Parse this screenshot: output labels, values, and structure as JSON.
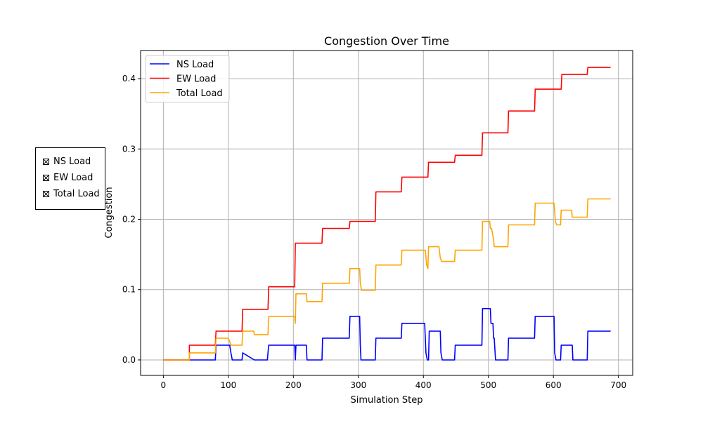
{
  "chart_data": {
    "type": "line",
    "title": "Congestion Over Time",
    "xlabel": "Simulation Step",
    "ylabel": "Congestion",
    "xlim": [
      -35,
      722
    ],
    "ylim": [
      -0.022,
      0.44
    ],
    "xticks": [
      0,
      100,
      200,
      300,
      400,
      500,
      600,
      700
    ],
    "yticks": [
      0.0,
      0.1,
      0.2,
      0.3,
      0.4
    ],
    "ytick_labels": [
      "0.0",
      "0.1",
      "0.2",
      "0.3",
      "0.4"
    ],
    "grid": true,
    "legend_position": "upper-left",
    "series": [
      {
        "name": "NS Load",
        "color": "#0000ff",
        "points": [
          [
            0,
            0
          ],
          [
            40,
            0
          ],
          [
            40,
            0
          ],
          [
            80,
            0
          ],
          [
            81,
            0.021
          ],
          [
            102,
            0.021
          ],
          [
            104,
            0.01
          ],
          [
            106,
            0
          ],
          [
            121,
            0
          ],
          [
            122,
            0.01
          ],
          [
            140,
            0
          ],
          [
            160,
            0
          ],
          [
            162,
            0.021
          ],
          [
            202,
            0.021
          ],
          [
            203,
            0
          ],
          [
            204,
            0.021
          ],
          [
            220,
            0.021
          ],
          [
            221,
            0
          ],
          [
            244,
            0
          ],
          [
            245,
            0.031
          ],
          [
            286,
            0.031
          ],
          [
            287,
            0.062
          ],
          [
            302,
            0.062
          ],
          [
            303,
            0.021
          ],
          [
            304,
            0
          ],
          [
            326,
            0
          ],
          [
            327,
            0.031
          ],
          [
            366,
            0.031
          ],
          [
            367,
            0.052
          ],
          [
            402,
            0.052
          ],
          [
            404,
            0.01
          ],
          [
            406,
            0
          ],
          [
            408,
            0
          ],
          [
            409,
            0.041
          ],
          [
            426,
            0.041
          ],
          [
            427,
            0.01
          ],
          [
            429,
            0
          ],
          [
            448,
            0
          ],
          [
            449,
            0.021
          ],
          [
            490,
            0.021
          ],
          [
            491,
            0.073
          ],
          [
            503,
            0.073
          ],
          [
            504,
            0.052
          ],
          [
            507,
            0.052
          ],
          [
            508,
            0.031
          ],
          [
            509,
            0.031
          ],
          [
            511,
            0
          ],
          [
            530,
            0
          ],
          [
            531,
            0.031
          ],
          [
            571,
            0.031
          ],
          [
            572,
            0.062
          ],
          [
            601,
            0.062
          ],
          [
            602,
            0.01
          ],
          [
            604,
            0
          ],
          [
            611,
            0
          ],
          [
            612,
            0.021
          ],
          [
            629,
            0.021
          ],
          [
            630,
            0
          ],
          [
            652,
            0
          ],
          [
            653,
            0.041
          ],
          [
            688,
            0.041
          ]
        ]
      },
      {
        "name": "EW Load",
        "color": "#ff0000",
        "points": [
          [
            0,
            0
          ],
          [
            40,
            0
          ],
          [
            40,
            0.021
          ],
          [
            80,
            0.021
          ],
          [
            81,
            0.041
          ],
          [
            121,
            0.041
          ],
          [
            122,
            0.072
          ],
          [
            161,
            0.072
          ],
          [
            162,
            0.104
          ],
          [
            202,
            0.104
          ],
          [
            203,
            0.166
          ],
          [
            244,
            0.166
          ],
          [
            245,
            0.187
          ],
          [
            286,
            0.187
          ],
          [
            287,
            0.197
          ],
          [
            326,
            0.197
          ],
          [
            327,
            0.239
          ],
          [
            366,
            0.239
          ],
          [
            367,
            0.26
          ],
          [
            407,
            0.26
          ],
          [
            408,
            0.281
          ],
          [
            448,
            0.281
          ],
          [
            449,
            0.291
          ],
          [
            490,
            0.291
          ],
          [
            491,
            0.323
          ],
          [
            530,
            0.323
          ],
          [
            531,
            0.354
          ],
          [
            571,
            0.354
          ],
          [
            572,
            0.385
          ],
          [
            612,
            0.385
          ],
          [
            613,
            0.406
          ],
          [
            652,
            0.406
          ],
          [
            653,
            0.416
          ],
          [
            688,
            0.416
          ]
        ]
      },
      {
        "name": "Total Load",
        "color": "#ffa500",
        "points": [
          [
            0,
            0
          ],
          [
            40,
            0
          ],
          [
            40,
            0.01
          ],
          [
            80,
            0.01
          ],
          [
            81,
            0.031
          ],
          [
            100,
            0.031
          ],
          [
            102,
            0.026
          ],
          [
            104,
            0.021
          ],
          [
            121,
            0.021
          ],
          [
            122,
            0.041
          ],
          [
            139,
            0.041
          ],
          [
            140,
            0.036
          ],
          [
            161,
            0.036
          ],
          [
            162,
            0.062
          ],
          [
            202,
            0.062
          ],
          [
            203,
            0.052
          ],
          [
            204,
            0.094
          ],
          [
            220,
            0.094
          ],
          [
            221,
            0.083
          ],
          [
            244,
            0.083
          ],
          [
            245,
            0.109
          ],
          [
            286,
            0.109
          ],
          [
            287,
            0.13
          ],
          [
            302,
            0.13
          ],
          [
            303,
            0.109
          ],
          [
            305,
            0.099
          ],
          [
            326,
            0.099
          ],
          [
            327,
            0.135
          ],
          [
            366,
            0.135
          ],
          [
            367,
            0.156
          ],
          [
            403,
            0.156
          ],
          [
            405,
            0.135
          ],
          [
            407,
            0.13
          ],
          [
            408,
            0.161
          ],
          [
            424,
            0.161
          ],
          [
            426,
            0.145
          ],
          [
            428,
            0.14
          ],
          [
            448,
            0.14
          ],
          [
            449,
            0.156
          ],
          [
            490,
            0.156
          ],
          [
            491,
            0.197
          ],
          [
            502,
            0.197
          ],
          [
            503,
            0.187
          ],
          [
            505,
            0.187
          ],
          [
            508,
            0.171
          ],
          [
            509,
            0.161
          ],
          [
            530,
            0.161
          ],
          [
            531,
            0.192
          ],
          [
            571,
            0.192
          ],
          [
            572,
            0.223
          ],
          [
            601,
            0.223
          ],
          [
            603,
            0.197
          ],
          [
            605,
            0.192
          ],
          [
            611,
            0.192
          ],
          [
            612,
            0.213
          ],
          [
            628,
            0.213
          ],
          [
            629,
            0.203
          ],
          [
            652,
            0.203
          ],
          [
            653,
            0.229
          ],
          [
            688,
            0.229
          ]
        ]
      }
    ]
  },
  "side_panel": {
    "items": [
      "NS Load",
      "EW Load",
      "Total Load"
    ]
  }
}
